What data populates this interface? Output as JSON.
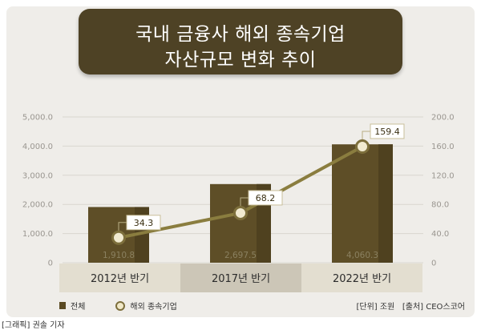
{
  "title": {
    "line1": "국내 금융사 해외 종속기업",
    "line2": "자산규모 변화 추이"
  },
  "legend": {
    "bar_label": "전체",
    "line_label": "해외 종속기업"
  },
  "unit_note": "[단위] 조원",
  "source_note": "[출처] CEO스코어",
  "credit": "[그래픽] 권솔 기자",
  "colors": {
    "bar": "#5e4e27",
    "line": "#8a7d3f",
    "marker_fill": "#f1ead0",
    "title_bg": "#4e4225"
  },
  "chart_data": {
    "type": "bar",
    "categories": [
      "2012년 반기",
      "2017년 반기",
      "2022년 반기"
    ],
    "series": [
      {
        "name": "전체",
        "type": "bar",
        "axis": "left",
        "values": [
          1910.8,
          2697.5,
          4060.3
        ],
        "labels": [
          "1,910.8",
          "2,697.5",
          "4,060.3"
        ]
      },
      {
        "name": "해외 종속기업",
        "type": "line",
        "axis": "right",
        "values": [
          34.3,
          68.2,
          159.4
        ],
        "labels": [
          "34.3",
          "68.2",
          "159.4"
        ]
      }
    ],
    "left_axis": {
      "range": [
        0,
        5000
      ],
      "ticks": [
        "0",
        "1,000.0",
        "2,000.0",
        "3,000.0",
        "4,000.0",
        "5,000.0"
      ]
    },
    "right_axis": {
      "range": [
        0,
        200
      ],
      "ticks": [
        "0",
        "40.0",
        "80.0",
        "120.0",
        "160.0",
        "200.0"
      ]
    },
    "grid": true,
    "legend_position": "bottom-left"
  }
}
